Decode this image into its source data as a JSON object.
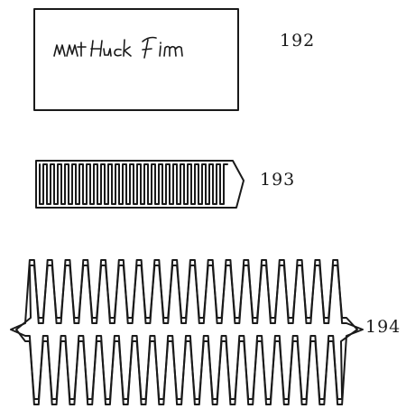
{
  "figures": [
    {
      "number": "192",
      "signature": "Mt Huck Fim"
    },
    {
      "number": "193"
    },
    {
      "number": "194"
    }
  ],
  "colors": {
    "ink": "#1a1a1a",
    "paper": "#ffffff"
  }
}
